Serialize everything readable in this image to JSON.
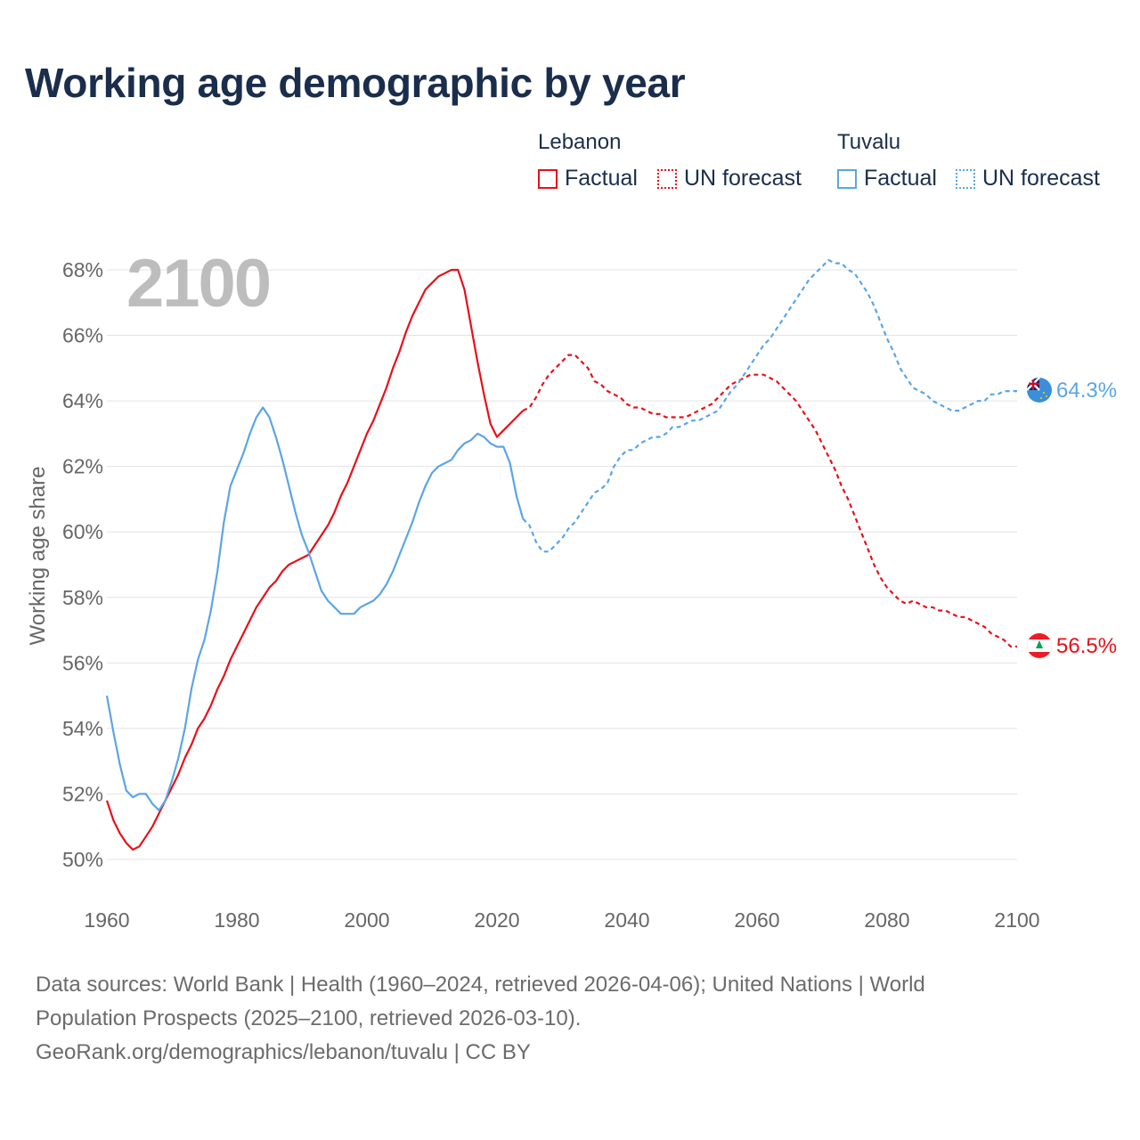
{
  "title": "Working age demographic by year",
  "legend": {
    "groups": [
      {
        "country": "Lebanon",
        "color": "#e8101a",
        "items": [
          "Factual",
          "UN forecast"
        ]
      },
      {
        "country": "Tuvalu",
        "color": "#5ba5e6",
        "items": [
          "Factual",
          "UN forecast"
        ]
      }
    ]
  },
  "year_label": "2100",
  "chart_data": {
    "type": "line",
    "title": "Working age demographic by year",
    "xlabel": "",
    "ylabel": "Working age share",
    "xlim": [
      1960,
      2100
    ],
    "ylim": [
      50,
      68
    ],
    "x_ticks": [
      "1960",
      "1980",
      "2000",
      "2020",
      "2040",
      "2060",
      "2080",
      "2100"
    ],
    "y_ticks": [
      "50%",
      "52%",
      "54%",
      "56%",
      "58%",
      "60%",
      "62%",
      "64%",
      "66%",
      "68%"
    ],
    "factual_range": [
      1960,
      2024
    ],
    "forecast_range": [
      2024,
      2100
    ],
    "series": [
      {
        "name": "Lebanon",
        "color": "#e8101a",
        "end_label": "56.5%",
        "points": [
          [
            1960,
            51.8
          ],
          [
            1961,
            51.2
          ],
          [
            1962,
            50.8
          ],
          [
            1963,
            50.5
          ],
          [
            1964,
            50.3
          ],
          [
            1965,
            50.4
          ],
          [
            1966,
            50.7
          ],
          [
            1967,
            51.0
          ],
          [
            1968,
            51.4
          ],
          [
            1969,
            51.8
          ],
          [
            1970,
            52.2
          ],
          [
            1971,
            52.6
          ],
          [
            1972,
            53.1
          ],
          [
            1973,
            53.5
          ],
          [
            1974,
            54.0
          ],
          [
            1975,
            54.3
          ],
          [
            1976,
            54.7
          ],
          [
            1977,
            55.2
          ],
          [
            1978,
            55.6
          ],
          [
            1979,
            56.1
          ],
          [
            1980,
            56.5
          ],
          [
            1981,
            56.9
          ],
          [
            1982,
            57.3
          ],
          [
            1983,
            57.7
          ],
          [
            1984,
            58.0
          ],
          [
            1985,
            58.3
          ],
          [
            1986,
            58.5
          ],
          [
            1987,
            58.8
          ],
          [
            1988,
            59.0
          ],
          [
            1989,
            59.1
          ],
          [
            1990,
            59.2
          ],
          [
            1991,
            59.3
          ],
          [
            1992,
            59.6
          ],
          [
            1993,
            59.9
          ],
          [
            1994,
            60.2
          ],
          [
            1995,
            60.6
          ],
          [
            1996,
            61.1
          ],
          [
            1997,
            61.5
          ],
          [
            1998,
            62.0
          ],
          [
            1999,
            62.5
          ],
          [
            2000,
            63.0
          ],
          [
            2001,
            63.4
          ],
          [
            2002,
            63.9
          ],
          [
            2003,
            64.4
          ],
          [
            2004,
            65.0
          ],
          [
            2005,
            65.5
          ],
          [
            2006,
            66.1
          ],
          [
            2007,
            66.6
          ],
          [
            2008,
            67.0
          ],
          [
            2009,
            67.4
          ],
          [
            2010,
            67.6
          ],
          [
            2011,
            67.8
          ],
          [
            2012,
            67.9
          ],
          [
            2013,
            68.0
          ],
          [
            2014,
            68.0
          ],
          [
            2015,
            67.4
          ],
          [
            2016,
            66.3
          ],
          [
            2017,
            65.2
          ],
          [
            2018,
            64.2
          ],
          [
            2019,
            63.3
          ],
          [
            2020,
            62.9
          ],
          [
            2021,
            63.1
          ],
          [
            2022,
            63.3
          ],
          [
            2023,
            63.5
          ],
          [
            2024,
            63.7
          ],
          [
            2025,
            63.8
          ],
          [
            2026,
            64.1
          ],
          [
            2027,
            64.5
          ],
          [
            2028,
            64.8
          ],
          [
            2029,
            65.0
          ],
          [
            2030,
            65.2
          ],
          [
            2031,
            65.4
          ],
          [
            2032,
            65.4
          ],
          [
            2033,
            65.2
          ],
          [
            2034,
            65.0
          ],
          [
            2035,
            64.6
          ],
          [
            2036,
            64.5
          ],
          [
            2037,
            64.3
          ],
          [
            2038,
            64.2
          ],
          [
            2039,
            64.1
          ],
          [
            2040,
            63.9
          ],
          [
            2041,
            63.8
          ],
          [
            2042,
            63.8
          ],
          [
            2043,
            63.7
          ],
          [
            2044,
            63.6
          ],
          [
            2045,
            63.6
          ],
          [
            2046,
            63.5
          ],
          [
            2047,
            63.5
          ],
          [
            2048,
            63.5
          ],
          [
            2049,
            63.5
          ],
          [
            2050,
            63.6
          ],
          [
            2051,
            63.7
          ],
          [
            2052,
            63.8
          ],
          [
            2053,
            63.9
          ],
          [
            2054,
            64.1
          ],
          [
            2055,
            64.3
          ],
          [
            2056,
            64.5
          ],
          [
            2057,
            64.6
          ],
          [
            2058,
            64.7
          ],
          [
            2059,
            64.8
          ],
          [
            2060,
            64.8
          ],
          [
            2061,
            64.8
          ],
          [
            2062,
            64.7
          ],
          [
            2063,
            64.6
          ],
          [
            2064,
            64.4
          ],
          [
            2065,
            64.2
          ],
          [
            2066,
            64.0
          ],
          [
            2067,
            63.7
          ],
          [
            2068,
            63.4
          ],
          [
            2069,
            63.1
          ],
          [
            2070,
            62.7
          ],
          [
            2071,
            62.3
          ],
          [
            2072,
            61.9
          ],
          [
            2073,
            61.4
          ],
          [
            2074,
            61.0
          ],
          [
            2075,
            60.5
          ],
          [
            2076,
            60.0
          ],
          [
            2077,
            59.5
          ],
          [
            2078,
            59.0
          ],
          [
            2079,
            58.6
          ],
          [
            2080,
            58.3
          ],
          [
            2081,
            58.1
          ],
          [
            2082,
            57.9
          ],
          [
            2083,
            57.8
          ],
          [
            2084,
            57.9
          ],
          [
            2085,
            57.8
          ],
          [
            2086,
            57.7
          ],
          [
            2087,
            57.7
          ],
          [
            2088,
            57.6
          ],
          [
            2089,
            57.6
          ],
          [
            2090,
            57.5
          ],
          [
            2091,
            57.4
          ],
          [
            2092,
            57.4
          ],
          [
            2093,
            57.3
          ],
          [
            2094,
            57.2
          ],
          [
            2095,
            57.1
          ],
          [
            2096,
            56.9
          ],
          [
            2097,
            56.8
          ],
          [
            2098,
            56.7
          ],
          [
            2099,
            56.5
          ],
          [
            2100,
            56.5
          ]
        ]
      },
      {
        "name": "Tuvalu",
        "color": "#5ba5e6",
        "end_label": "64.3%",
        "points": [
          [
            1960,
            55.0
          ],
          [
            1961,
            53.9
          ],
          [
            1962,
            52.9
          ],
          [
            1963,
            52.1
          ],
          [
            1964,
            51.9
          ],
          [
            1965,
            52.0
          ],
          [
            1966,
            52.0
          ],
          [
            1967,
            51.7
          ],
          [
            1968,
            51.5
          ],
          [
            1969,
            51.8
          ],
          [
            1970,
            52.4
          ],
          [
            1971,
            53.1
          ],
          [
            1972,
            54.0
          ],
          [
            1973,
            55.2
          ],
          [
            1974,
            56.1
          ],
          [
            1975,
            56.7
          ],
          [
            1976,
            57.6
          ],
          [
            1977,
            58.8
          ],
          [
            1978,
            60.3
          ],
          [
            1979,
            61.4
          ],
          [
            1980,
            61.9
          ],
          [
            1981,
            62.4
          ],
          [
            1982,
            63.0
          ],
          [
            1983,
            63.5
          ],
          [
            1984,
            63.8
          ],
          [
            1985,
            63.5
          ],
          [
            1986,
            62.9
          ],
          [
            1987,
            62.2
          ],
          [
            1988,
            61.4
          ],
          [
            1989,
            60.6
          ],
          [
            1990,
            59.9
          ],
          [
            1991,
            59.4
          ],
          [
            1992,
            58.8
          ],
          [
            1993,
            58.2
          ],
          [
            1994,
            57.9
          ],
          [
            1995,
            57.7
          ],
          [
            1996,
            57.5
          ],
          [
            1997,
            57.5
          ],
          [
            1998,
            57.5
          ],
          [
            1999,
            57.7
          ],
          [
            2000,
            57.8
          ],
          [
            2001,
            57.9
          ],
          [
            2002,
            58.1
          ],
          [
            2003,
            58.4
          ],
          [
            2004,
            58.8
          ],
          [
            2005,
            59.3
          ],
          [
            2006,
            59.8
          ],
          [
            2007,
            60.3
          ],
          [
            2008,
            60.9
          ],
          [
            2009,
            61.4
          ],
          [
            2010,
            61.8
          ],
          [
            2011,
            62.0
          ],
          [
            2012,
            62.1
          ],
          [
            2013,
            62.2
          ],
          [
            2014,
            62.5
          ],
          [
            2015,
            62.7
          ],
          [
            2016,
            62.8
          ],
          [
            2017,
            63.0
          ],
          [
            2018,
            62.9
          ],
          [
            2019,
            62.7
          ],
          [
            2020,
            62.6
          ],
          [
            2021,
            62.6
          ],
          [
            2022,
            62.1
          ],
          [
            2023,
            61.1
          ],
          [
            2024,
            60.4
          ],
          [
            2025,
            60.2
          ],
          [
            2026,
            59.7
          ],
          [
            2027,
            59.4
          ],
          [
            2028,
            59.4
          ],
          [
            2029,
            59.6
          ],
          [
            2030,
            59.8
          ],
          [
            2031,
            60.1
          ],
          [
            2032,
            60.3
          ],
          [
            2033,
            60.6
          ],
          [
            2034,
            60.9
          ],
          [
            2035,
            61.2
          ],
          [
            2036,
            61.3
          ],
          [
            2037,
            61.5
          ],
          [
            2038,
            62.0
          ],
          [
            2039,
            62.3
          ],
          [
            2040,
            62.5
          ],
          [
            2041,
            62.5
          ],
          [
            2042,
            62.7
          ],
          [
            2043,
            62.8
          ],
          [
            2044,
            62.9
          ],
          [
            2045,
            62.9
          ],
          [
            2046,
            63.0
          ],
          [
            2047,
            63.2
          ],
          [
            2048,
            63.2
          ],
          [
            2049,
            63.3
          ],
          [
            2050,
            63.4
          ],
          [
            2051,
            63.4
          ],
          [
            2052,
            63.5
          ],
          [
            2053,
            63.6
          ],
          [
            2054,
            63.7
          ],
          [
            2055,
            64.0
          ],
          [
            2056,
            64.3
          ],
          [
            2057,
            64.5
          ],
          [
            2058,
            64.8
          ],
          [
            2059,
            65.1
          ],
          [
            2060,
            65.4
          ],
          [
            2061,
            65.7
          ],
          [
            2062,
            65.9
          ],
          [
            2063,
            66.2
          ],
          [
            2064,
            66.5
          ],
          [
            2065,
            66.8
          ],
          [
            2066,
            67.1
          ],
          [
            2067,
            67.4
          ],
          [
            2068,
            67.7
          ],
          [
            2069,
            67.9
          ],
          [
            2070,
            68.1
          ],
          [
            2071,
            68.3
          ],
          [
            2072,
            68.2
          ],
          [
            2073,
            68.2
          ],
          [
            2074,
            68.0
          ],
          [
            2075,
            67.9
          ],
          [
            2076,
            67.6
          ],
          [
            2077,
            67.3
          ],
          [
            2078,
            66.9
          ],
          [
            2079,
            66.4
          ],
          [
            2080,
            65.9
          ],
          [
            2081,
            65.5
          ],
          [
            2082,
            65.0
          ],
          [
            2083,
            64.7
          ],
          [
            2084,
            64.4
          ],
          [
            2085,
            64.3
          ],
          [
            2086,
            64.2
          ],
          [
            2087,
            64.0
          ],
          [
            2088,
            63.9
          ],
          [
            2089,
            63.8
          ],
          [
            2090,
            63.7
          ],
          [
            2091,
            63.7
          ],
          [
            2092,
            63.8
          ],
          [
            2093,
            63.9
          ],
          [
            2094,
            64.0
          ],
          [
            2095,
            64.0
          ],
          [
            2096,
            64.2
          ],
          [
            2097,
            64.2
          ],
          [
            2098,
            64.3
          ],
          [
            2099,
            64.3
          ],
          [
            2100,
            64.3
          ]
        ]
      }
    ]
  },
  "footer": {
    "line1": "Data sources: World Bank | Health (1960–2024, retrieved 2026-04-06); United Nations | World",
    "line2": "Population Prospects (2025–2100, retrieved 2026-03-10).",
    "line3": "GeoRank.org/demographics/lebanon/tuvalu | CC BY"
  }
}
